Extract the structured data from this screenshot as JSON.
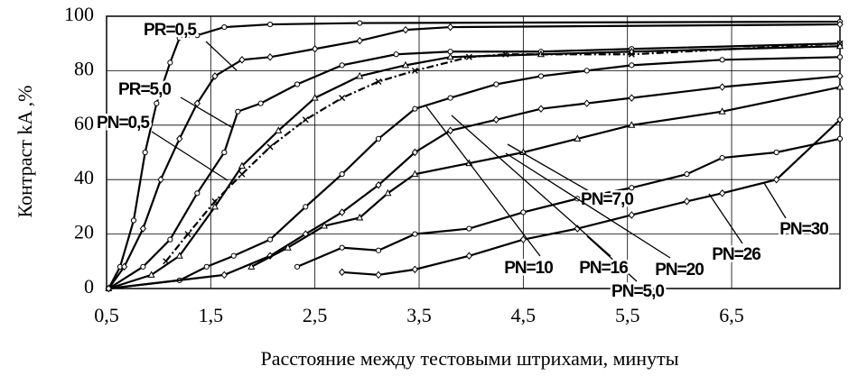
{
  "chart_data": {
    "type": "line",
    "xlabel": "Расстояние между тестовыми штрихами, минуты",
    "ylabel": "Контраст kA ,%",
    "xlim": [
      0.5,
      7.54
    ],
    "ylim": [
      0,
      100
    ],
    "xticks": [
      {
        "value": 0.5,
        "label": "0,5"
      },
      {
        "value": 1.5,
        "label": "1,5"
      },
      {
        "value": 2.5,
        "label": "2,5"
      },
      {
        "value": 3.5,
        "label": "3,5"
      },
      {
        "value": 4.5,
        "label": "4,5"
      },
      {
        "value": 5.5,
        "label": "5,5"
      },
      {
        "value": 6.5,
        "label": "6,5"
      }
    ],
    "yticks": [
      0,
      20,
      40,
      60,
      80,
      100
    ],
    "grid": true,
    "series": [
      {
        "name": "PR=0,5",
        "color": "#000000",
        "marker": "circle",
        "dash": "solid",
        "x": [
          0.52,
          0.63,
          0.76,
          0.87,
          0.98,
          1.11,
          1.2,
          1.37,
          1.63,
          2.07,
          2.93,
          7.54
        ],
        "values": [
          0,
          8,
          25,
          50,
          68,
          83,
          92,
          93,
          96,
          97,
          97.5,
          98
        ]
      },
      {
        "name": "PR=5,0",
        "color": "#000000",
        "marker": "diamond",
        "dash": "solid",
        "x": [
          0.52,
          0.67,
          0.85,
          1.02,
          1.2,
          1.37,
          1.54,
          1.8,
          2.07,
          2.5,
          2.93,
          3.37,
          3.8,
          7.54
        ],
        "values": [
          0,
          8,
          22,
          40,
          55,
          68,
          78,
          84,
          85,
          88,
          91,
          95,
          96,
          97
        ]
      },
      {
        "name": "PN=0,5",
        "color": "#000000",
        "marker": "circle",
        "dash": "solid",
        "x": [
          0.52,
          0.85,
          1.11,
          1.37,
          1.63,
          1.76,
          1.98,
          2.33,
          2.76,
          3.28,
          3.8,
          4.67,
          5.54,
          7.54
        ],
        "values": [
          0,
          8,
          18,
          35,
          50,
          65,
          68,
          75,
          82,
          86,
          87,
          87,
          88,
          90
        ]
      },
      {
        "name": "PN=5,0",
        "color": "#000000",
        "marker": "triangle",
        "dash": "solid",
        "x": [
          0.52,
          0.93,
          1.2,
          1.54,
          1.8,
          2.15,
          2.5,
          2.93,
          3.37,
          3.8,
          4.67,
          5.54,
          7.54
        ],
        "values": [
          0,
          5,
          12,
          30,
          45,
          58,
          70,
          78,
          82,
          85,
          86,
          87,
          89
        ]
      },
      {
        "name": "PN=7,0",
        "color": "#000000",
        "marker": "x",
        "dash": "dashdot",
        "x": [
          1.07,
          1.28,
          1.54,
          1.8,
          2.07,
          2.41,
          2.76,
          3.11,
          3.46,
          3.98,
          4.33,
          5.54,
          7.54
        ],
        "values": [
          10,
          20,
          32,
          42,
          52,
          62,
          70,
          76,
          80,
          85,
          86,
          86,
          90
        ]
      },
      {
        "name": "PN=10",
        "color": "#000000",
        "marker": "circle",
        "dash": "solid",
        "x": [
          0.52,
          1.2,
          1.46,
          1.72,
          2.07,
          2.41,
          2.76,
          3.11,
          3.46,
          3.8,
          4.24,
          4.67,
          5.11,
          5.54,
          6.41,
          7.54
        ],
        "values": [
          0,
          3,
          8,
          12,
          18,
          30,
          42,
          55,
          66,
          70,
          75,
          78,
          80,
          82,
          84,
          85
        ]
      },
      {
        "name": "PN=16",
        "color": "#000000",
        "marker": "diamond",
        "dash": "solid",
        "x": [
          0.52,
          1.63,
          2.07,
          2.41,
          2.76,
          3.11,
          3.46,
          3.8,
          4.24,
          4.67,
          5.11,
          5.54,
          6.41,
          7.54
        ],
        "values": [
          0,
          5,
          12,
          20,
          28,
          38,
          50,
          58,
          62,
          66,
          68,
          70,
          74,
          78
        ]
      },
      {
        "name": "PN=20",
        "color": "#000000",
        "marker": "triangle",
        "dash": "solid",
        "x": [
          1.89,
          2.24,
          2.59,
          2.93,
          3.2,
          3.46,
          3.98,
          4.5,
          5.02,
          5.54,
          6.41,
          7.54
        ],
        "values": [
          8,
          15,
          23,
          26,
          35,
          42,
          46,
          50,
          55,
          60,
          65,
          74
        ]
      },
      {
        "name": "PN=26",
        "color": "#000000",
        "marker": "circle",
        "dash": "solid",
        "x": [
          2.33,
          2.76,
          3.11,
          3.46,
          3.98,
          4.5,
          5.02,
          5.54,
          6.07,
          6.41,
          6.93,
          7.54
        ],
        "values": [
          8,
          15,
          14,
          20,
          22,
          28,
          33,
          37,
          42,
          48,
          50,
          55
        ]
      },
      {
        "name": "PN=30",
        "color": "#000000",
        "marker": "diamond",
        "dash": "solid",
        "x": [
          2.76,
          3.11,
          3.46,
          3.98,
          4.5,
          5.02,
          5.54,
          6.07,
          6.41,
          6.93,
          7.54
        ],
        "values": [
          6,
          5,
          7,
          12,
          18,
          22,
          27,
          32,
          35,
          40,
          62
        ]
      }
    ]
  }
}
